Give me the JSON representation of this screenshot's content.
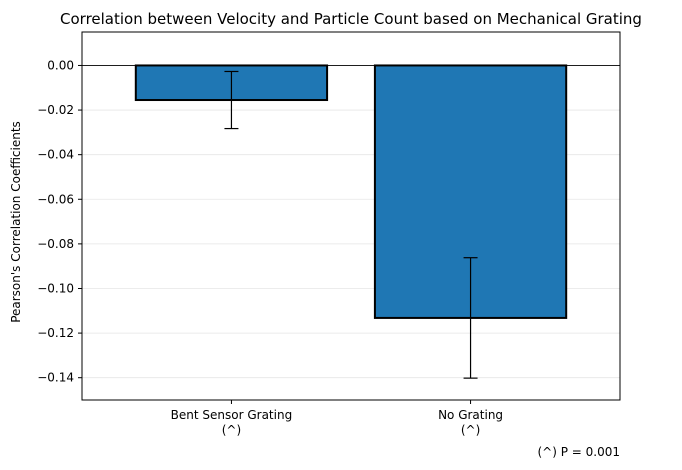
{
  "chart_data": {
    "type": "bar",
    "title": "Correlation between Velocity and Particle Count based on Mechanical Grating",
    "xlabel": "",
    "ylabel": "Pearson's Correlation Coefficients",
    "categories": [
      "Bent Sensor Grating\n(^)",
      "No Grating\n(^)"
    ],
    "values": [
      -0.0155,
      -0.1132
    ],
    "error": [
      0.0128,
      0.027
    ],
    "ylim": [
      -0.15,
      0.015
    ],
    "yticks": [
      0.0,
      -0.02,
      -0.04,
      -0.06,
      -0.08,
      -0.1,
      -0.12,
      -0.14
    ],
    "ytick_labels": [
      "0.00",
      "−0.02",
      "−0.04",
      "−0.06",
      "−0.08",
      "−0.10",
      "−0.12",
      "−0.14"
    ],
    "grid": "horizontal",
    "bar_color": "#1f77b4",
    "annotation": "(^) P = 0.001"
  }
}
